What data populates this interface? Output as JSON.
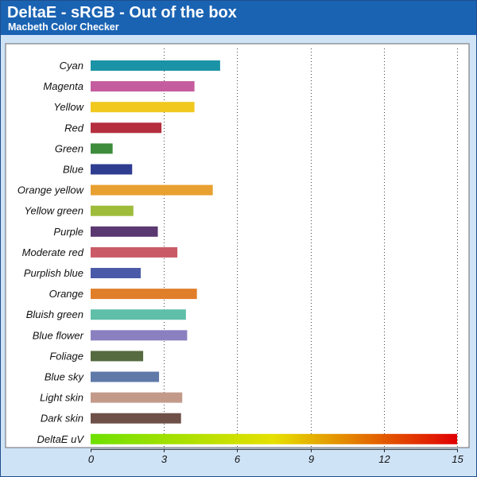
{
  "header": {
    "title": "DeltaE - sRGB - Out of the box",
    "subtitle": "Macbeth Color Checker"
  },
  "colors": {
    "header_bg": "#1a63b3",
    "frame_bg": "#cfe3f7",
    "gradient_start": "#6ee000",
    "gradient_mid": "#e6e000",
    "gradient_end": "#e00000"
  },
  "chart_data": {
    "type": "bar",
    "orientation": "horizontal",
    "title": "DeltaE - sRGB - Out of the box",
    "subtitle": "Macbeth Color Checker",
    "xlabel": "",
    "ylabel": "",
    "xlim": [
      0,
      15
    ],
    "xticks": [
      0,
      3,
      6,
      9,
      12,
      15
    ],
    "grid": "vertical dotted",
    "categories": [
      "Cyan",
      "Magenta",
      "Yellow",
      "Red",
      "Green",
      "Blue",
      "Orange yellow",
      "Yellow green",
      "Purple",
      "Moderate red",
      "Purplish blue",
      "Orange",
      "Bluish green",
      "Blue flower",
      "Foliage",
      "Blue sky",
      "Light skin",
      "Dark skin",
      "DeltaE uV"
    ],
    "values": [
      5.3,
      4.25,
      4.25,
      2.9,
      0.9,
      1.7,
      5.0,
      1.75,
      2.75,
      3.55,
      2.05,
      4.35,
      3.9,
      3.95,
      2.15,
      2.8,
      3.75,
      3.7,
      15
    ],
    "bar_colors": [
      "#1b93a6",
      "#c45c9e",
      "#f0c81e",
      "#b52e3d",
      "#3d8c3c",
      "#2f3d91",
      "#e8a030",
      "#9ebc3a",
      "#5b3870",
      "#c95a66",
      "#4a5aa8",
      "#e07e2a",
      "#5fbfa8",
      "#8a80c0",
      "#566b40",
      "#5f79a8",
      "#c39a8a",
      "#6e5048",
      "gradient"
    ]
  }
}
